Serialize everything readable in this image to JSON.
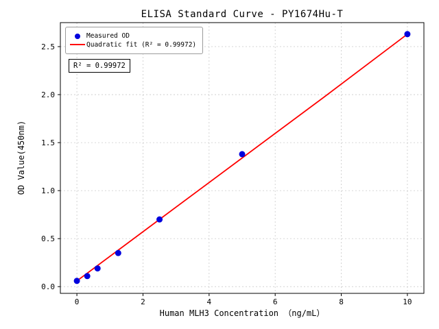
{
  "chart_data": {
    "type": "scatter",
    "title": "ELISA Standard Curve - PY1674Hu-T",
    "xlabel": "Human MLH3 Concentration （ng/mL）",
    "ylabel": "OD Value(450nm)",
    "xlim": [
      -0.5,
      10.5
    ],
    "ylim": [
      -0.07,
      2.75
    ],
    "x_ticks": [
      0,
      2,
      4,
      6,
      8,
      10
    ],
    "x_tick_labels": [
      "0",
      "2",
      "4",
      "6",
      "8",
      "10"
    ],
    "y_ticks": [
      0.0,
      0.5,
      1.0,
      1.5,
      2.0,
      2.5
    ],
    "y_tick_labels": [
      "0.0",
      "0.5",
      "1.0",
      "1.5",
      "2.0",
      "2.5"
    ],
    "grid": true,
    "legend_position": "upper left",
    "annotation": "R² = 0.99972",
    "colors": {
      "scatter": "#0000dd",
      "fit_line": "#ff0000",
      "grid": "#c9c9c9",
      "axis": "#000000"
    },
    "series": [
      {
        "name": "Measured OD",
        "type": "scatter",
        "color": "#0000dd",
        "x": [
          0,
          0.313,
          0.625,
          1.25,
          2.5,
          5,
          10
        ],
        "y": [
          0.06,
          0.11,
          0.19,
          0.35,
          0.7,
          1.38,
          2.63
        ]
      },
      {
        "name": "Quadratic fit (R² = 0.99972)",
        "type": "line",
        "color": "#ff0000",
        "x": [
          0,
          1.25,
          2.5,
          5,
          7.5,
          10
        ],
        "y": [
          0.06,
          0.38,
          0.7,
          1.34,
          1.98,
          2.63
        ]
      }
    ]
  }
}
